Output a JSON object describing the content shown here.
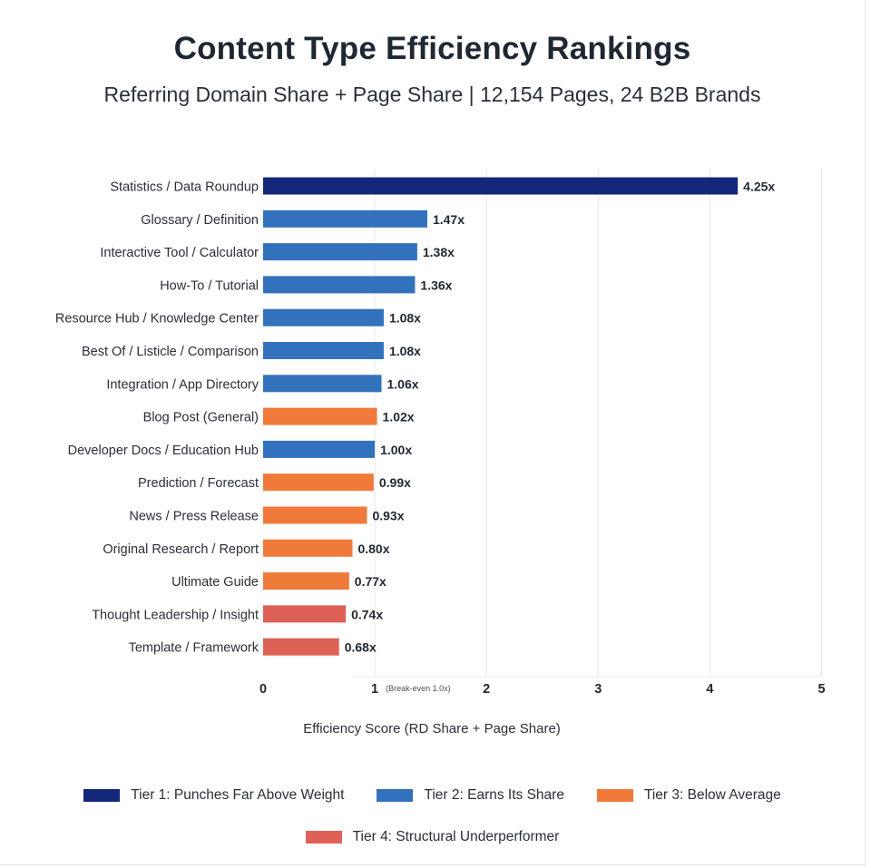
{
  "chart_data": {
    "type": "bar",
    "orientation": "horizontal",
    "title": "Content Type Efficiency Rankings",
    "subtitle": "Referring Domain Share + Page Share | 12,154 Pages, 24 B2B Brands",
    "xlabel": "Efficiency Score (RD Share + Page Share)",
    "ylabel": "",
    "xlim": [
      0,
      5
    ],
    "xticks": [
      0,
      1,
      2,
      3,
      4,
      5
    ],
    "reference_line_note": "(Break-even 1.0x)",
    "grid": "vertical",
    "legend_position": "bottom",
    "categories": [
      "Statistics / Data Roundup",
      "Glossary / Definition",
      "Interactive Tool / Calculator",
      "How-To / Tutorial",
      "Resource Hub / Knowledge Center",
      "Best Of / Listicle / Comparison",
      "Integration / App Directory",
      "Blog Post (General)",
      "Developer Docs / Education Hub",
      "Prediction / Forecast",
      "News / Press Release",
      "Original Research / Report",
      "Ultimate Guide",
      "Thought Leadership / Insight",
      "Template / Framework"
    ],
    "values": [
      4.25,
      1.47,
      1.38,
      1.36,
      1.08,
      1.08,
      1.06,
      1.02,
      1.0,
      0.99,
      0.93,
      0.8,
      0.77,
      0.74,
      0.68
    ],
    "value_labels": [
      "4.25x",
      "1.47x",
      "1.38x",
      "1.36x",
      "1.08x",
      "1.08x",
      "1.06x",
      "1.02x",
      "1.00x",
      "0.99x",
      "0.93x",
      "0.80x",
      "0.77x",
      "0.74x",
      "0.68x"
    ],
    "tiers": [
      1,
      2,
      2,
      2,
      2,
      2,
      2,
      3,
      2,
      3,
      3,
      3,
      3,
      4,
      4
    ],
    "tier_legend": [
      {
        "tier": 1,
        "label": "Tier 1: Punches Far Above Weight",
        "color": "#13287a"
      },
      {
        "tier": 2,
        "label": "Tier 2: Earns Its Share",
        "color": "#3272bc"
      },
      {
        "tier": 3,
        "label": "Tier 3: Below Average",
        "color": "#f07a3a"
      },
      {
        "tier": 4,
        "label": "Tier 4: Structural Underperformer",
        "color": "#dd6157"
      }
    ]
  }
}
